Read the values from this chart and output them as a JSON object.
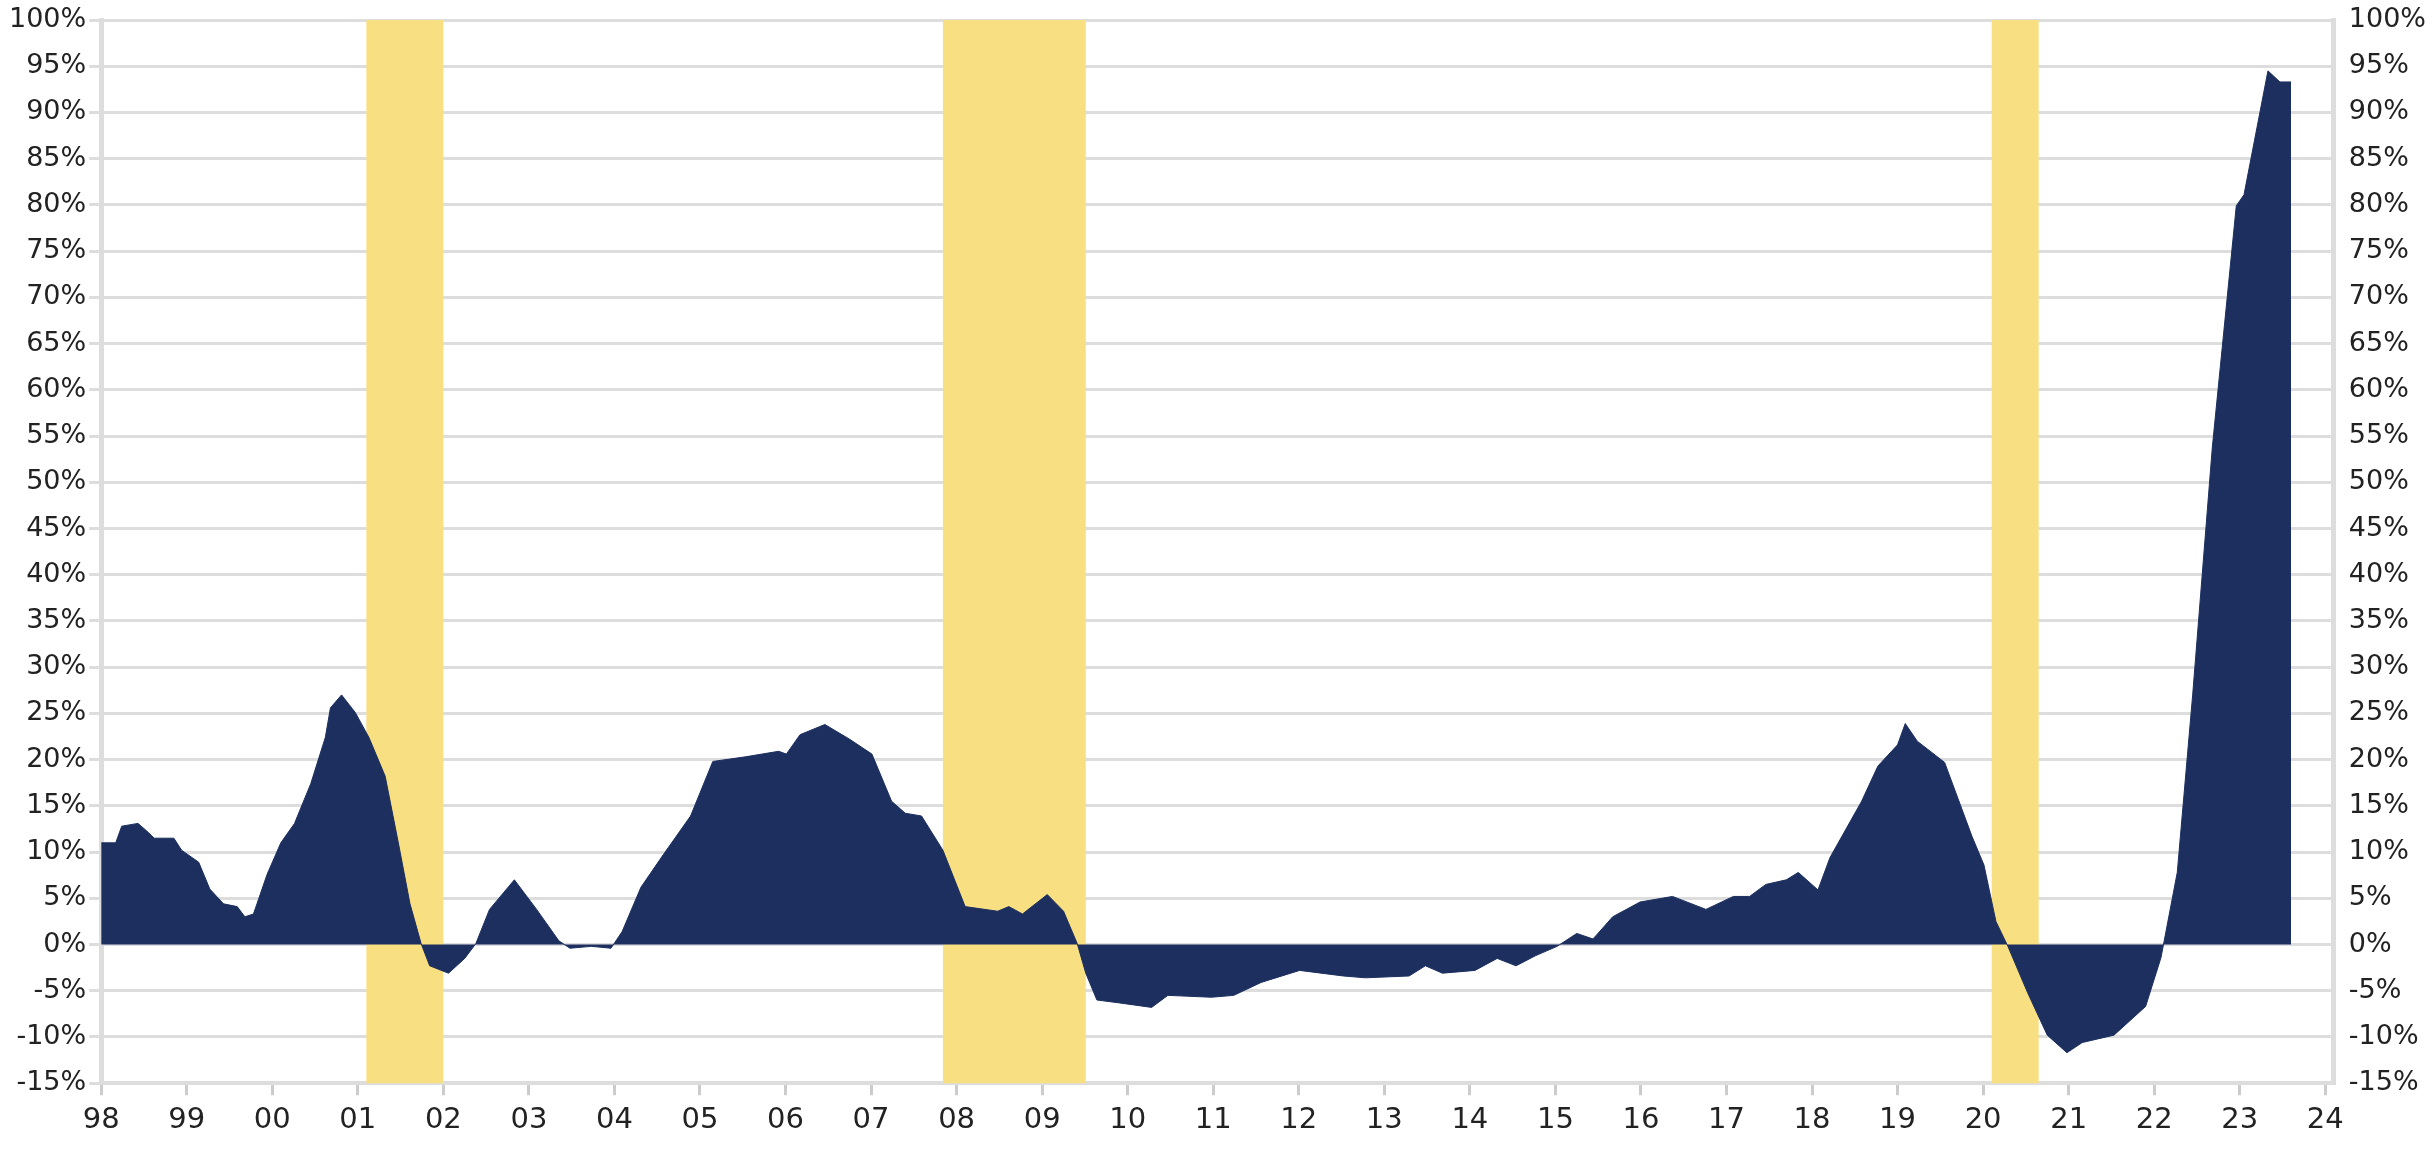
{
  "chart_data": {
    "type": "area",
    "x": [
      1998.0,
      1998.17,
      1998.24,
      1998.43,
      1998.53,
      1998.62,
      1998.85,
      1998.94,
      1999.14,
      1999.27,
      1999.43,
      1999.59,
      1999.68,
      1999.78,
      1999.94,
      2000.1,
      2000.26,
      2000.45,
      2000.62,
      2000.68,
      2000.81,
      2000.97,
      2001.13,
      2001.32,
      2001.48,
      2001.61,
      2001.74,
      2001.84,
      2002.06,
      2002.25,
      2002.38,
      2002.54,
      2002.83,
      2003.09,
      2003.35,
      2003.48,
      2003.73,
      2003.96,
      2004.09,
      2004.31,
      2004.57,
      2004.89,
      2005.15,
      2005.53,
      2005.92,
      2006.01,
      2006.17,
      2006.46,
      2006.75,
      2007.01,
      2007.24,
      2007.4,
      2007.59,
      2007.84,
      2008.1,
      2008.48,
      2008.61,
      2008.77,
      2009.06,
      2009.25,
      2009.41,
      2009.51,
      2009.64,
      2009.89,
      2010.28,
      2010.47,
      2010.98,
      2011.24,
      2011.56,
      2012.01,
      2012.52,
      2012.78,
      2013.29,
      2013.48,
      2013.68,
      2014.06,
      2014.32,
      2014.54,
      2014.77,
      2015.02,
      2015.25,
      2015.44,
      2015.67,
      2015.99,
      2016.37,
      2016.76,
      2017.08,
      2017.27,
      2017.46,
      2017.7,
      2017.84,
      2018.07,
      2018.21,
      2018.58,
      2018.77,
      2019.0,
      2019.09,
      2019.23,
      2019.55,
      2019.87,
      2020.01,
      2020.15,
      2020.29,
      2020.52,
      2020.75,
      2020.98,
      2021.16,
      2021.53,
      2021.9,
      2022.08,
      2022.27,
      2022.45,
      2022.68,
      2022.96,
      2023.05,
      2023.33,
      2023.47,
      2023.6
    ],
    "series": [
      {
        "color": "#1c2f5e",
        "values": [
          11,
          11,
          12.8,
          13.1,
          12.3,
          11.5,
          11.5,
          10.2,
          8.9,
          6,
          4.4,
          4.1,
          3,
          3.3,
          7.6,
          11,
          13.1,
          17.4,
          22.4,
          25.6,
          27,
          25.1,
          22.4,
          18.2,
          10.7,
          4.4,
          0.1,
          -2.3,
          -3.1,
          -1.5,
          0.1,
          3.8,
          7,
          3.8,
          0.4,
          -0.4,
          -0.2,
          -0.4,
          1.4,
          6.2,
          9.7,
          13.9,
          19.8,
          20.3,
          20.9,
          20.6,
          22.7,
          23.8,
          22.2,
          20.6,
          15.5,
          14.2,
          13.9,
          10.2,
          4.1,
          3.6,
          4.1,
          3.3,
          5.4,
          3.6,
          0.1,
          -3.1,
          -6,
          -6.3,
          -6.8,
          -5.5,
          -5.7,
          -5.5,
          -4.1,
          -2.8,
          -3.4,
          -3.6,
          -3.4,
          -2.3,
          -3.1,
          -2.8,
          -1.5,
          -2.3,
          -1.2,
          -0.2,
          1.2,
          0.6,
          3,
          4.6,
          5.2,
          3.8,
          5.2,
          5.2,
          6.5,
          7,
          7.8,
          5.9,
          9.4,
          15.5,
          19.3,
          21.6,
          23.9,
          22,
          19.7,
          11.7,
          8.6,
          2.5,
          -0.2,
          -5.2,
          -9.8,
          -11.7,
          -10.6,
          -9.8,
          -6.7,
          -1.4,
          7.8,
          27,
          53.8,
          79.9,
          81.1,
          94.5,
          93.3,
          93.3
        ]
      }
    ],
    "xlim": [
      1998,
      2024.1
    ],
    "xticks": [
      {
        "value": 1998,
        "label": "98"
      },
      {
        "value": 1999,
        "label": "99"
      },
      {
        "value": 2000,
        "label": "00"
      },
      {
        "value": 2001,
        "label": "01"
      },
      {
        "value": 2002,
        "label": "02"
      },
      {
        "value": 2003,
        "label": "03"
      },
      {
        "value": 2004,
        "label": "04"
      },
      {
        "value": 2005,
        "label": "05"
      },
      {
        "value": 2006,
        "label": "06"
      },
      {
        "value": 2007,
        "label": "07"
      },
      {
        "value": 2008,
        "label": "08"
      },
      {
        "value": 2009,
        "label": "09"
      },
      {
        "value": 2010,
        "label": "10"
      },
      {
        "value": 2011,
        "label": "11"
      },
      {
        "value": 2012,
        "label": "12"
      },
      {
        "value": 2013,
        "label": "13"
      },
      {
        "value": 2014,
        "label": "14"
      },
      {
        "value": 2015,
        "label": "15"
      },
      {
        "value": 2016,
        "label": "16"
      },
      {
        "value": 2017,
        "label": "17"
      },
      {
        "value": 2018,
        "label": "18"
      },
      {
        "value": 2019,
        "label": "19"
      },
      {
        "value": 2020,
        "label": "20"
      },
      {
        "value": 2021,
        "label": "21"
      },
      {
        "value": 2022,
        "label": "22"
      },
      {
        "value": 2023,
        "label": "23"
      },
      {
        "value": 2024,
        "label": "24"
      }
    ],
    "ylim": [
      -15,
      100
    ],
    "yticks": [
      {
        "value": -15,
        "label": "-15%"
      },
      {
        "value": -10,
        "label": "-10%"
      },
      {
        "value": -5,
        "label": "-5%"
      },
      {
        "value": 0,
        "label": "0%"
      },
      {
        "value": 5,
        "label": "5%"
      },
      {
        "value": 10,
        "label": "10%"
      },
      {
        "value": 15,
        "label": "15%"
      },
      {
        "value": 20,
        "label": "20%"
      },
      {
        "value": 25,
        "label": "25%"
      },
      {
        "value": 30,
        "label": "30%"
      },
      {
        "value": 35,
        "label": "35%"
      },
      {
        "value": 40,
        "label": "40%"
      },
      {
        "value": 45,
        "label": "45%"
      },
      {
        "value": 50,
        "label": "50%"
      },
      {
        "value": 55,
        "label": "55%"
      },
      {
        "value": 60,
        "label": "60%"
      },
      {
        "value": 65,
        "label": "65%"
      },
      {
        "value": 70,
        "label": "70%"
      },
      {
        "value": 75,
        "label": "75%"
      },
      {
        "value": 80,
        "label": "80%"
      },
      {
        "value": 85,
        "label": "85%"
      },
      {
        "value": 90,
        "label": "90%"
      },
      {
        "value": 95,
        "label": "95%"
      },
      {
        "value": 100,
        "label": "100%"
      }
    ],
    "y2lim": [
      -15,
      100
    ],
    "y2ticks": [
      {
        "value": -15,
        "label": "-15%"
      },
      {
        "value": -10,
        "label": "-10%"
      },
      {
        "value": -5,
        "label": "-5%"
      },
      {
        "value": 0,
        "label": "0%"
      },
      {
        "value": 5,
        "label": "5%"
      },
      {
        "value": 10,
        "label": "10%"
      },
      {
        "value": 15,
        "label": "15%"
      },
      {
        "value": 20,
        "label": "20%"
      },
      {
        "value": 25,
        "label": "25%"
      },
      {
        "value": 30,
        "label": "30%"
      },
      {
        "value": 35,
        "label": "35%"
      },
      {
        "value": 40,
        "label": "40%"
      },
      {
        "value": 45,
        "label": "45%"
      },
      {
        "value": 50,
        "label": "50%"
      },
      {
        "value": 55,
        "label": "55%"
      },
      {
        "value": 60,
        "label": "60%"
      },
      {
        "value": 65,
        "label": "65%"
      },
      {
        "value": 70,
        "label": "70%"
      },
      {
        "value": 75,
        "label": "75%"
      },
      {
        "value": 80,
        "label": "80%"
      },
      {
        "value": 85,
        "label": "85%"
      },
      {
        "value": 90,
        "label": "90%"
      },
      {
        "value": 95,
        "label": "95%"
      },
      {
        "value": 100,
        "label": "100%"
      }
    ],
    "bands": [
      {
        "axis": "x",
        "from": 2001.1,
        "to": 2002.0,
        "color": "#f8df82"
      },
      {
        "axis": "x",
        "from": 2007.84,
        "to": 2009.51,
        "color": "#f8df82"
      },
      {
        "axis": "x",
        "from": 2020.1,
        "to": 2020.65,
        "color": "#f8df82"
      }
    ],
    "grid": "y"
  }
}
